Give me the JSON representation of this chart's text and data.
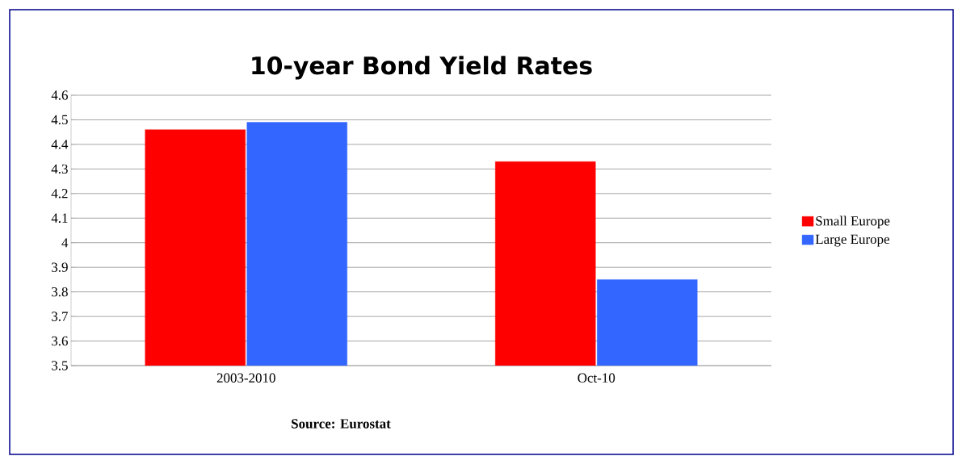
{
  "chart_data": {
    "type": "bar",
    "title": "10-year Bond Yield Rates",
    "categories": [
      "2003-2010",
      "Oct-10"
    ],
    "series": [
      {
        "name": "Small Europe",
        "color": "#ff0000",
        "values": [
          4.46,
          4.33
        ]
      },
      {
        "name": "Large Europe",
        "color": "#3366ff",
        "values": [
          4.49,
          3.85
        ]
      }
    ],
    "ylim": [
      3.5,
      4.6
    ],
    "yticks": [
      3.5,
      3.6,
      3.7,
      3.8,
      3.9,
      4,
      4.1,
      4.2,
      4.3,
      4.4,
      4.5,
      4.6
    ],
    "grid": "y",
    "legend": "right",
    "annotations": [
      "Source: Eurostat"
    ]
  }
}
